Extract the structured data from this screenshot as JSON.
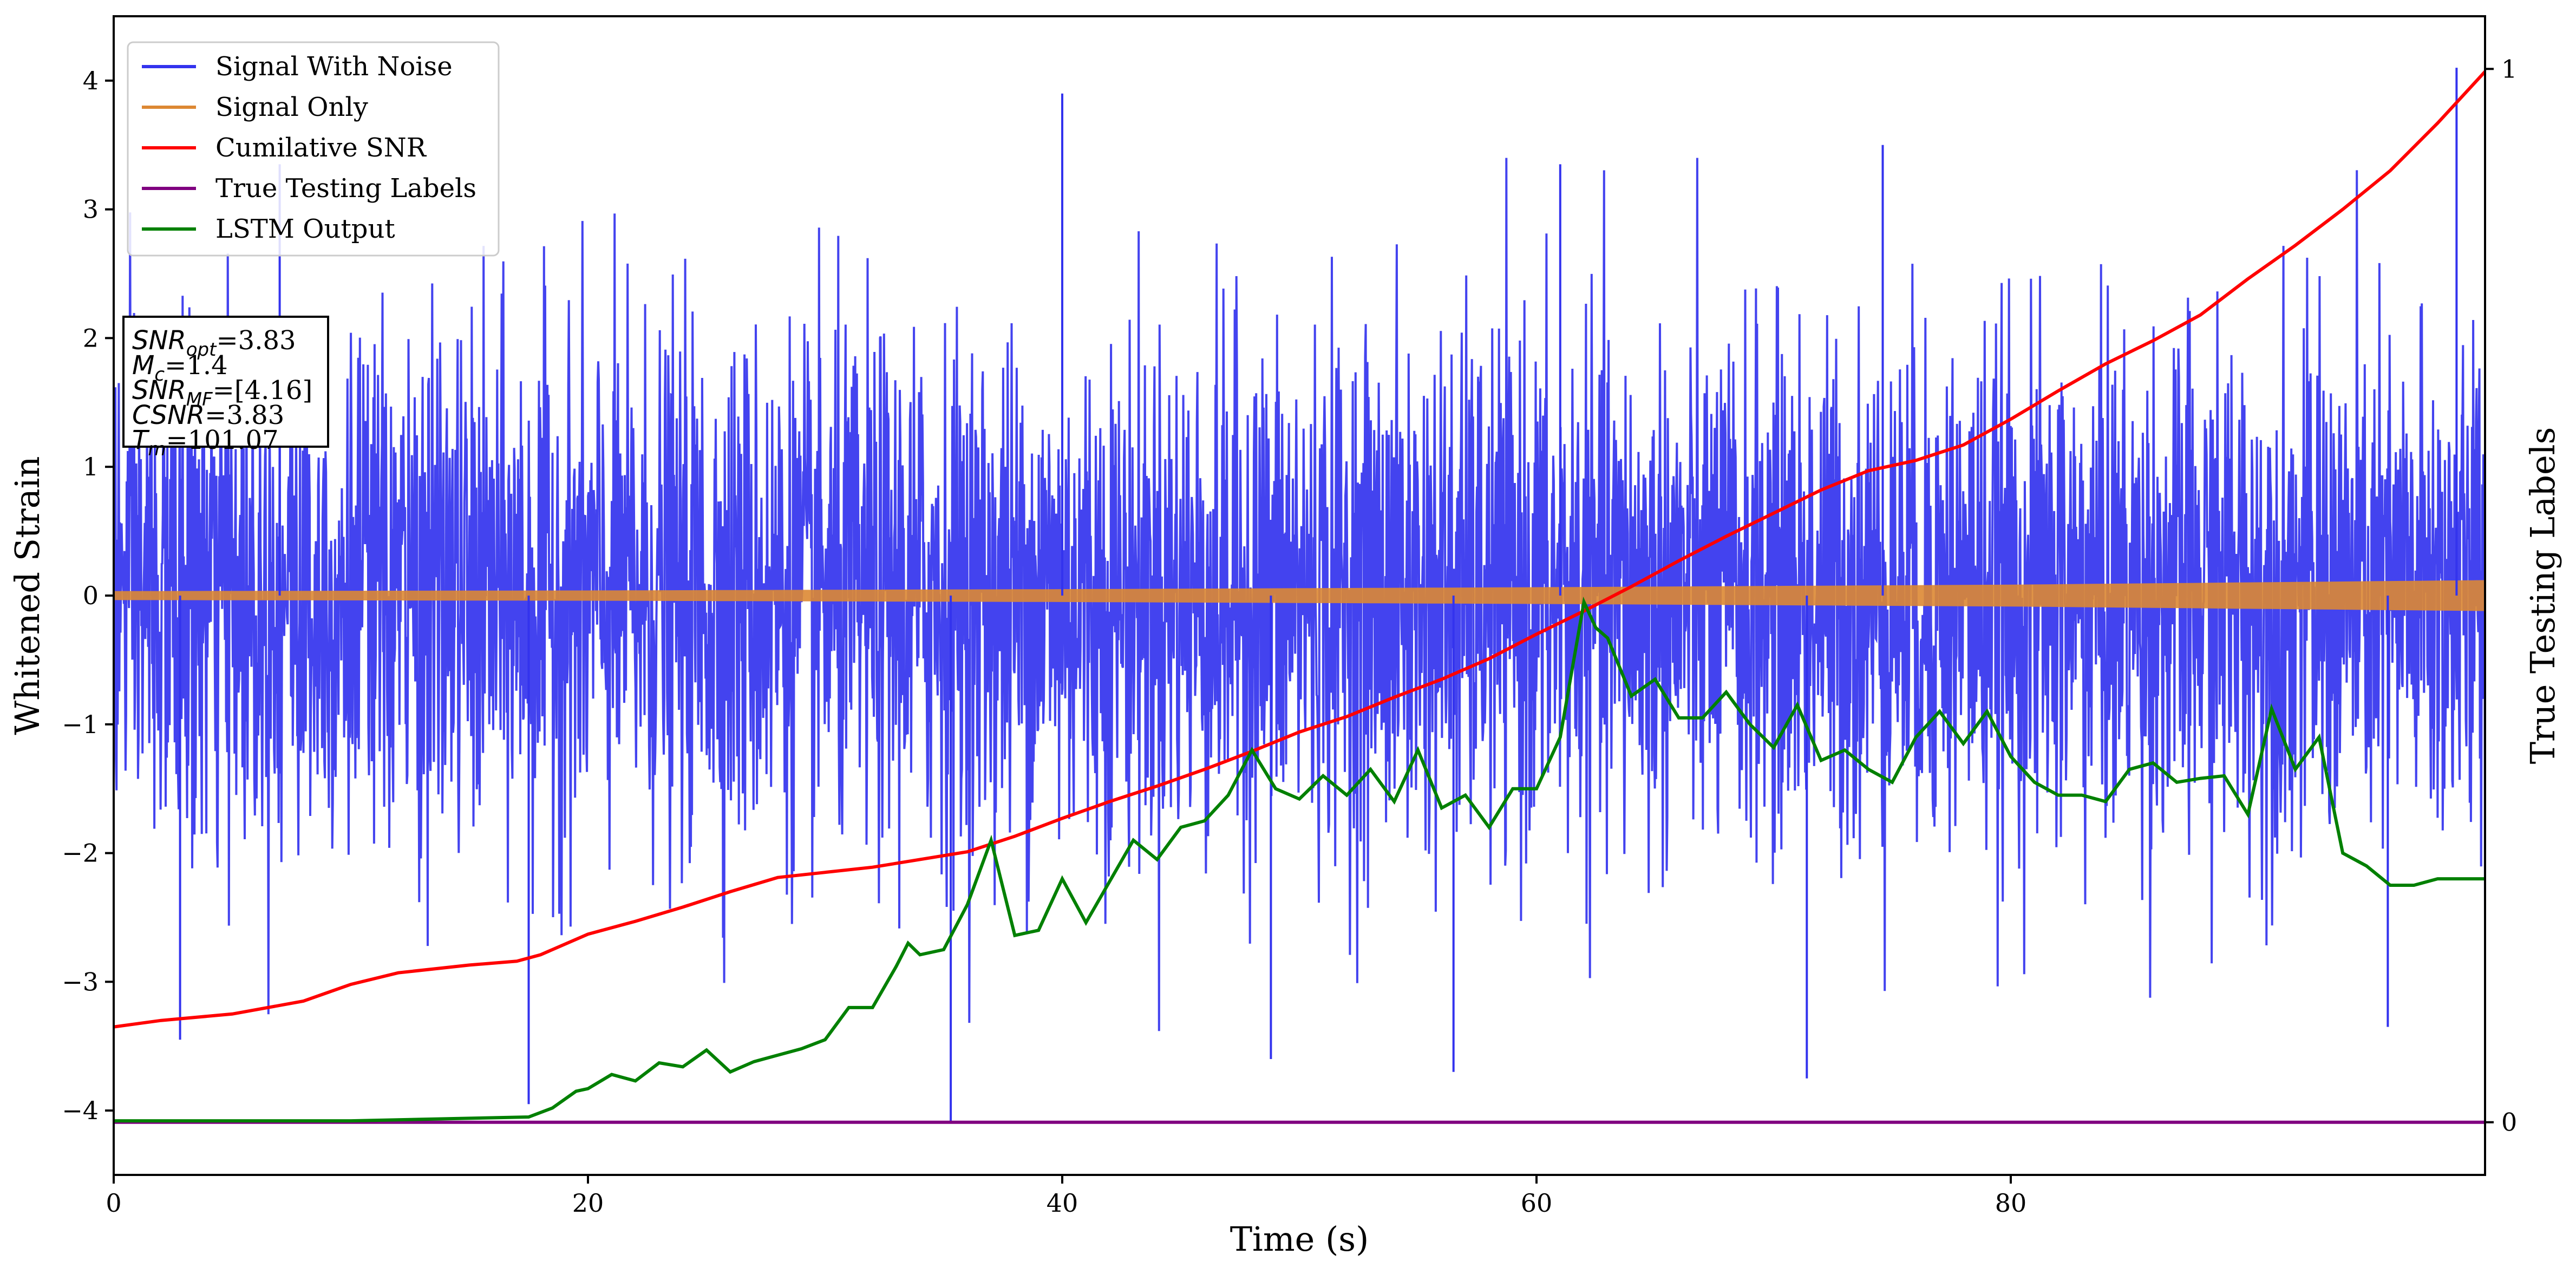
{
  "chart_data": {
    "type": "line",
    "xlabel": "Time (s)",
    "ylabel": "Whitened Strain",
    "y2label": "True Testing Labels",
    "xlim": [
      0,
      100
    ],
    "ylim": [
      -4.5,
      4.5
    ],
    "y2lim": [
      -0.05,
      1.05
    ],
    "xticks": [
      0,
      20,
      40,
      60,
      80
    ],
    "yticks": [
      -4,
      -3,
      -2,
      -1,
      0,
      1,
      2,
      3,
      4
    ],
    "y2ticks": [
      0,
      1
    ],
    "grid": false,
    "legend_position": "top-left",
    "series": [
      {
        "name": "Signal With Noise",
        "axis": "left",
        "color": "#3333ee",
        "style": "dense noise, approximately uniform standard deviation about 1 around 0, peaks near +4 and -4",
        "amplitude_envelope": {
          "x": [
            0,
            100
          ],
          "std": [
            1.0,
            1.0
          ]
        },
        "spikes": [
          {
            "x": 17.5,
            "y": -3.95
          },
          {
            "x": 35.3,
            "y": -4.1
          },
          {
            "x": 40.0,
            "y": 3.9
          },
          {
            "x": 98.8,
            "y": 4.1
          },
          {
            "x": 71.4,
            "y": -3.75
          },
          {
            "x": 56.5,
            "y": -3.7
          },
          {
            "x": 48.8,
            "y": -3.6
          },
          {
            "x": 2.8,
            "y": -3.45
          },
          {
            "x": 95.9,
            "y": -3.35
          },
          {
            "x": 7.0,
            "y": 3.35
          },
          {
            "x": 74.6,
            "y": 3.5
          },
          {
            "x": 61.0,
            "y": 3.35
          }
        ]
      },
      {
        "name": "Signal Only",
        "axis": "left",
        "color": "#dd8833",
        "style": "chirp, amplitude grows slowly",
        "amplitude_envelope": {
          "x": [
            0,
            20,
            40,
            60,
            80,
            100
          ],
          "amp": [
            0.035,
            0.04,
            0.05,
            0.065,
            0.085,
            0.12
          ]
        }
      },
      {
        "name": "Cumilative SNR",
        "axis": "left",
        "color": "#ff0000",
        "x": [
          0,
          2,
          5,
          8,
          10,
          12,
          15,
          17,
          18,
          20,
          22,
          24,
          26,
          28,
          30,
          32,
          34,
          36,
          38,
          40,
          42,
          44,
          46,
          48,
          50,
          52,
          54,
          56,
          58,
          60,
          62,
          64,
          66,
          68,
          70,
          72,
          74,
          76,
          78,
          80,
          82,
          84,
          86,
          88,
          90,
          92,
          94,
          96,
          98,
          100
        ],
        "y": [
          -3.35,
          -3.3,
          -3.25,
          -3.15,
          -3.02,
          -2.93,
          -2.87,
          -2.84,
          -2.79,
          -2.63,
          -2.53,
          -2.42,
          -2.3,
          -2.19,
          -2.15,
          -2.11,
          -2.05,
          -1.99,
          -1.87,
          -1.73,
          -1.6,
          -1.48,
          -1.35,
          -1.21,
          -1.06,
          -0.94,
          -0.79,
          -0.65,
          -0.49,
          -0.3,
          -0.12,
          0.07,
          0.27,
          0.46,
          0.64,
          0.82,
          0.97,
          1.05,
          1.17,
          1.37,
          1.59,
          1.8,
          1.98,
          2.18,
          2.46,
          2.72,
          3.0,
          3.3,
          3.67,
          4.07
        ]
      },
      {
        "name": "True Testing Labels",
        "axis": "right",
        "color": "#800080",
        "x": [
          0,
          100
        ],
        "y": [
          0,
          0
        ]
      },
      {
        "name": "LSTM Output",
        "axis": "left",
        "color": "#008000",
        "x": [
          0,
          5,
          10,
          15,
          17.5,
          18.5,
          19.5,
          20,
          21,
          22,
          23,
          24,
          25,
          26,
          27,
          28,
          29,
          30,
          31,
          32,
          33,
          33.5,
          34,
          35,
          36,
          37,
          38,
          39,
          40,
          41,
          42,
          43,
          44,
          45,
          46,
          47,
          48,
          49,
          50,
          51,
          52,
          53,
          54,
          55,
          56,
          57,
          58,
          59,
          60,
          61,
          62,
          62.5,
          63,
          64,
          65,
          66,
          67,
          68,
          69,
          70,
          71,
          72,
          73,
          74,
          75,
          76,
          77,
          78,
          79,
          80,
          81,
          82,
          83,
          84,
          85,
          86,
          87,
          88,
          89,
          90,
          91,
          92,
          93,
          94,
          95,
          96,
          97,
          98,
          100
        ],
        "y": [
          -4.08,
          -4.08,
          -4.08,
          -4.06,
          -4.05,
          -3.98,
          -3.85,
          -3.83,
          -3.72,
          -3.77,
          -3.63,
          -3.66,
          -3.53,
          -3.7,
          -3.62,
          -3.57,
          -3.52,
          -3.45,
          -3.2,
          -3.2,
          -2.88,
          -2.7,
          -2.79,
          -2.75,
          -2.4,
          -1.9,
          -2.64,
          -2.6,
          -2.2,
          -2.54,
          -2.22,
          -1.9,
          -2.05,
          -1.8,
          -1.75,
          -1.55,
          -1.2,
          -1.5,
          -1.58,
          -1.4,
          -1.55,
          -1.35,
          -1.6,
          -1.2,
          -1.65,
          -1.55,
          -1.8,
          -1.5,
          -1.5,
          -1.1,
          -0.05,
          -0.25,
          -0.33,
          -0.78,
          -0.65,
          -0.95,
          -0.95,
          -0.75,
          -1.0,
          -1.18,
          -0.85,
          -1.28,
          -1.2,
          -1.35,
          -1.45,
          -1.1,
          -0.9,
          -1.15,
          -0.9,
          -1.25,
          -1.45,
          -1.55,
          -1.55,
          -1.6,
          -1.35,
          -1.3,
          -1.45,
          -1.42,
          -1.4,
          -1.7,
          -0.88,
          -1.35,
          -1.1,
          -2.0,
          -2.1,
          -2.25,
          -2.25,
          -2.2,
          -2.2
        ]
      }
    ],
    "annotation_box": {
      "position": "upper-left, below legend",
      "lines": [
        {
          "sym": "SNR",
          "sub": "opt",
          "value": "=3.83"
        },
        {
          "sym": "M",
          "sub": "c",
          "value": "=1.4"
        },
        {
          "sym": "SNR",
          "sub": "MF",
          "value": "=[4.16]"
        },
        {
          "sym": "CSNR",
          "sub": "",
          "value": "=3.83"
        },
        {
          "sym": "T",
          "sub": "m",
          "value": "=101.07"
        }
      ]
    }
  }
}
